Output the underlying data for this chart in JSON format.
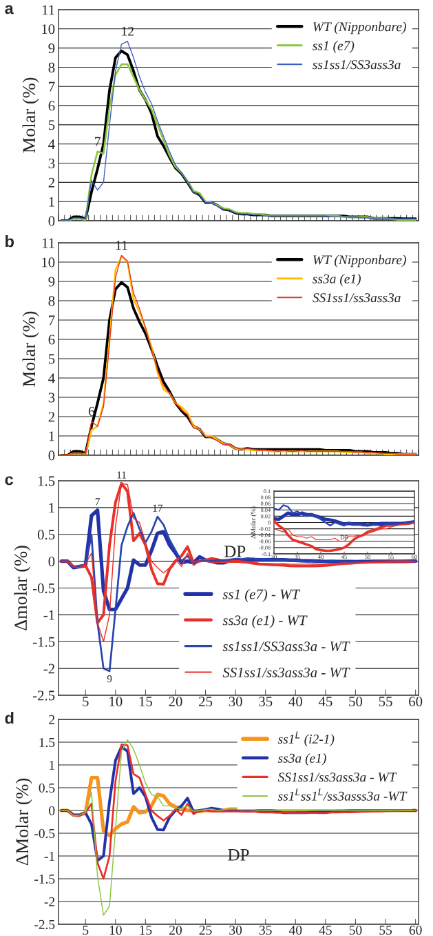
{
  "chart_data": [
    {
      "type": "line",
      "title": "a",
      "ylabel": "Molar (%)",
      "x": [
        1,
        2,
        3,
        4,
        5,
        6,
        7,
        8,
        9,
        10,
        11,
        12,
        13,
        14,
        15,
        16,
        17,
        18,
        19,
        20,
        21,
        22,
        23,
        24,
        25,
        26,
        27,
        28,
        29,
        30,
        31,
        32,
        33,
        34,
        35,
        36,
        37,
        38,
        39,
        40,
        41,
        42,
        43,
        44,
        45,
        46,
        47,
        48,
        49,
        50,
        51,
        52,
        53,
        54,
        55,
        56,
        57,
        58,
        59,
        60
      ],
      "xlim": [
        0.5,
        60.5
      ],
      "xticks": [
        {
          "value": 0.5,
          "label": null
        },
        {
          "value": 1.5,
          "label": null
        },
        {
          "value": 2.5,
          "label": null
        },
        {
          "value": 3.5,
          "label": null
        },
        {
          "value": 4.5,
          "label": null
        },
        {
          "value": 5.5,
          "label": null
        },
        {
          "value": 6.5,
          "label": null
        },
        {
          "value": 7.5,
          "label": null
        },
        {
          "value": 8.5,
          "label": null
        },
        {
          "value": 9.5,
          "label": null
        },
        {
          "value": 10.5,
          "label": null
        },
        {
          "value": 11.5,
          "label": null
        },
        {
          "value": 12.5,
          "label": null
        },
        {
          "value": 13.5,
          "label": null
        },
        {
          "value": 14.5,
          "label": null
        },
        {
          "value": 15.5,
          "label": null
        },
        {
          "value": 16.5,
          "label": null
        },
        {
          "value": 17.5,
          "label": null
        },
        {
          "value": 18.5,
          "label": null
        },
        {
          "value": 19.5,
          "label": null
        },
        {
          "value": 20.5,
          "label": null
        },
        {
          "value": 21.5,
          "label": null
        },
        {
          "value": 22.5,
          "label": null
        },
        {
          "value": 23.5,
          "label": null
        },
        {
          "value": 24.5,
          "label": null
        },
        {
          "value": 25.5,
          "label": null
        },
        {
          "value": 26.5,
          "label": null
        },
        {
          "value": 27.5,
          "label": null
        },
        {
          "value": 28.5,
          "label": null
        },
        {
          "value": 29.5,
          "label": null
        },
        {
          "value": 30.5,
          "label": null
        },
        {
          "value": 31.5,
          "label": null
        },
        {
          "value": 32.5,
          "label": null
        },
        {
          "value": 33.5,
          "label": null
        },
        {
          "value": 34.5,
          "label": null
        },
        {
          "value": 35.5,
          "label": null
        },
        {
          "value": 36.5,
          "label": null
        },
        {
          "value": 37.5,
          "label": null
        },
        {
          "value": 38.5,
          "label": null
        },
        {
          "value": 39.5,
          "label": null
        },
        {
          "value": 40.5,
          "label": null
        },
        {
          "value": 41.5,
          "label": null
        },
        {
          "value": 42.5,
          "label": null
        },
        {
          "value": 43.5,
          "label": null
        },
        {
          "value": 44.5,
          "label": null
        },
        {
          "value": 45.5,
          "label": null
        },
        {
          "value": 46.5,
          "label": null
        },
        {
          "value": 47.5,
          "label": null
        },
        {
          "value": 48.5,
          "label": null
        },
        {
          "value": 49.5,
          "label": null
        },
        {
          "value": 50.5,
          "label": null
        },
        {
          "value": 51.5,
          "label": null
        },
        {
          "value": 52.5,
          "label": null
        },
        {
          "value": 53.5,
          "label": null
        },
        {
          "value": 54.5,
          "label": null
        },
        {
          "value": 55.5,
          "label": null
        },
        {
          "value": 56.5,
          "label": null
        },
        {
          "value": 57.5,
          "label": null
        },
        {
          "value": 58.5,
          "label": null
        },
        {
          "value": 59.5,
          "label": null
        },
        {
          "value": 60.5,
          "label": null
        }
      ],
      "tick_labels": "y",
      "ylim": [
        0,
        11
      ],
      "yticks": [
        0,
        1,
        2,
        3,
        4,
        5,
        6,
        7,
        8,
        9,
        10,
        11
      ],
      "grid": "y",
      "legend": "top right",
      "annotations": [
        {
          "text": "7",
          "x": 7,
          "y": 3.6
        },
        {
          "text": "12",
          "x": 12,
          "y": 9.35
        }
      ],
      "series": [
        {
          "name": "WT (Nipponbare)",
          "color": "#000000",
          "values": [
            0,
            0,
            0.2,
            0.2,
            0.1,
            1.5,
            2.7,
            4.0,
            6.8,
            8.5,
            8.85,
            8.65,
            7.8,
            6.8,
            6.3,
            5.6,
            4.4,
            3.9,
            3.3,
            2.75,
            2.45,
            2.0,
            1.5,
            1.35,
            0.95,
            0.95,
            0.8,
            0.6,
            0.55,
            0.4,
            0.35,
            0.35,
            0.3,
            0.3,
            0.3,
            0.25,
            0.25,
            0.25,
            0.25,
            0.25,
            0.25,
            0.25,
            0.25,
            0.25,
            0.25,
            0.25,
            0.25,
            0.25,
            0.2,
            0.2,
            0.2,
            0.2,
            0.12,
            0.12,
            0.12,
            0.12,
            0.12,
            0.1,
            0.1,
            0.1
          ]
        },
        {
          "name": "ss1 (e7)",
          "color": "#8cc63f",
          "values": [
            0,
            0,
            0.1,
            0.1,
            0.05,
            2.4,
            3.6,
            3.5,
            5.9,
            7.6,
            8.15,
            8.15,
            7.5,
            6.8,
            6.3,
            5.8,
            5.0,
            4.2,
            3.4,
            2.8,
            2.5,
            2.05,
            1.55,
            1.45,
            1.0,
            0.95,
            0.8,
            0.65,
            0.6,
            0.45,
            0.4,
            0.4,
            0.35,
            0.35,
            0.3,
            0.25,
            0.25,
            0.25,
            0.25,
            0.25,
            0.25,
            0.25,
            0.25,
            0.25,
            0.25,
            0.25,
            0.25,
            0.2,
            0.2,
            0.2,
            0.2,
            0.2,
            0.12,
            0.12,
            0.12,
            0.1,
            0.05,
            0.05,
            0.05,
            0.05
          ]
        },
        {
          "name": "ss1ss1/SS3ass3a",
          "color": "#3b5cc4",
          "values": [
            0,
            0,
            0.15,
            0.15,
            0.1,
            2.1,
            1.6,
            2.0,
            5.0,
            7.8,
            9.2,
            9.35,
            8.5,
            7.5,
            6.7,
            6.1,
            5.2,
            4.4,
            3.6,
            2.9,
            2.5,
            2.05,
            1.45,
            1.35,
            0.95,
            0.95,
            0.75,
            0.6,
            0.55,
            0.4,
            0.35,
            0.35,
            0.3,
            0.3,
            0.25,
            0.25,
            0.25,
            0.25,
            0.25,
            0.25,
            0.25,
            0.25,
            0.25,
            0.25,
            0.25,
            0.2,
            0.2,
            0.2,
            0.2,
            0.2,
            0.15,
            0.15,
            0.1,
            0.1,
            0.1,
            0.1,
            0.1,
            0.1,
            0.1,
            0.1
          ]
        }
      ]
    },
    {
      "type": "line",
      "title": "b",
      "ylabel": "Molar (%)",
      "x": [
        1,
        2,
        3,
        4,
        5,
        6,
        7,
        8,
        9,
        10,
        11,
        12,
        13,
        14,
        15,
        16,
        17,
        18,
        19,
        20,
        21,
        22,
        23,
        24,
        25,
        26,
        27,
        28,
        29,
        30,
        31,
        32,
        33,
        34,
        35,
        36,
        37,
        38,
        39,
        40,
        41,
        42,
        43,
        44,
        45,
        46,
        47,
        48,
        49,
        50,
        51,
        52,
        53,
        54,
        55,
        56,
        57,
        58,
        59,
        60
      ],
      "xlim": [
        0.5,
        60.5
      ],
      "xticks": [
        {
          "value": 0.5,
          "label": null
        },
        {
          "value": 1.5,
          "label": null
        },
        {
          "value": 2.5,
          "label": null
        },
        {
          "value": 3.5,
          "label": null
        },
        {
          "value": 4.5,
          "label": null
        },
        {
          "value": 5.5,
          "label": null
        },
        {
          "value": 6.5,
          "label": null
        },
        {
          "value": 7.5,
          "label": null
        },
        {
          "value": 8.5,
          "label": null
        },
        {
          "value": 9.5,
          "label": null
        },
        {
          "value": 10.5,
          "label": null
        },
        {
          "value": 11.5,
          "label": null
        },
        {
          "value": 12.5,
          "label": null
        },
        {
          "value": 13.5,
          "label": null
        },
        {
          "value": 14.5,
          "label": null
        },
        {
          "value": 15.5,
          "label": null
        },
        {
          "value": 16.5,
          "label": null
        },
        {
          "value": 17.5,
          "label": null
        },
        {
          "value": 18.5,
          "label": null
        },
        {
          "value": 19.5,
          "label": null
        },
        {
          "value": 20.5,
          "label": null
        },
        {
          "value": 21.5,
          "label": null
        },
        {
          "value": 22.5,
          "label": null
        },
        {
          "value": 23.5,
          "label": null
        },
        {
          "value": 24.5,
          "label": null
        },
        {
          "value": 25.5,
          "label": null
        },
        {
          "value": 26.5,
          "label": null
        },
        {
          "value": 27.5,
          "label": null
        },
        {
          "value": 28.5,
          "label": null
        },
        {
          "value": 29.5,
          "label": null
        },
        {
          "value": 30.5,
          "label": null
        },
        {
          "value": 31.5,
          "label": null
        },
        {
          "value": 32.5,
          "label": null
        },
        {
          "value": 33.5,
          "label": null
        },
        {
          "value": 34.5,
          "label": null
        },
        {
          "value": 35.5,
          "label": null
        },
        {
          "value": 36.5,
          "label": null
        },
        {
          "value": 37.5,
          "label": null
        },
        {
          "value": 38.5,
          "label": null
        },
        {
          "value": 39.5,
          "label": null
        },
        {
          "value": 40.5,
          "label": null
        },
        {
          "value": 41.5,
          "label": null
        },
        {
          "value": 42.5,
          "label": null
        },
        {
          "value": 43.5,
          "label": null
        },
        {
          "value": 44.5,
          "label": null
        },
        {
          "value": 45.5,
          "label": null
        },
        {
          "value": 46.5,
          "label": null
        },
        {
          "value": 47.5,
          "label": null
        },
        {
          "value": 48.5,
          "label": null
        },
        {
          "value": 49.5,
          "label": null
        },
        {
          "value": 50.5,
          "label": null
        },
        {
          "value": 51.5,
          "label": null
        },
        {
          "value": 52.5,
          "label": null
        },
        {
          "value": 53.5,
          "label": null
        },
        {
          "value": 54.5,
          "label": null
        },
        {
          "value": 55.5,
          "label": null
        },
        {
          "value": 56.5,
          "label": null
        },
        {
          "value": 57.5,
          "label": null
        },
        {
          "value": 58.5,
          "label": null
        },
        {
          "value": 59.5,
          "label": null
        },
        {
          "value": 60.5,
          "label": null
        }
      ],
      "tick_labels": "y",
      "ylim": [
        0,
        11
      ],
      "yticks": [
        0,
        1,
        2,
        3,
        4,
        5,
        6,
        7,
        8,
        9,
        10,
        11
      ],
      "grid": "y",
      "legend": "top right",
      "annotations": [
        {
          "text": "6",
          "x": 6,
          "y": 1.75
        },
        {
          "text": "11",
          "x": 11,
          "y": 10.35
        }
      ],
      "series": [
        {
          "name": "WT (Nipponbare)",
          "color": "#000000",
          "values": [
            0,
            0,
            0.2,
            0.2,
            0.1,
            1.5,
            2.7,
            4.0,
            7.0,
            8.6,
            8.95,
            8.7,
            7.6,
            6.9,
            6.3,
            5.5,
            4.6,
            3.8,
            3.3,
            2.7,
            2.3,
            2.0,
            1.5,
            1.35,
            0.95,
            0.95,
            0.8,
            0.6,
            0.55,
            0.35,
            0.3,
            0.35,
            0.3,
            0.3,
            0.3,
            0.3,
            0.3,
            0.3,
            0.3,
            0.3,
            0.3,
            0.3,
            0.3,
            0.3,
            0.25,
            0.25,
            0.25,
            0.25,
            0.25,
            0.2,
            0.2,
            0.2,
            0.15,
            0.15,
            0.15,
            0.1,
            0.1,
            0.05,
            0.05,
            0.05
          ]
        },
        {
          "name": "ss3a (e1)",
          "color": "#ffc000",
          "values": [
            0,
            0,
            0.1,
            0.1,
            0.05,
            1.3,
            1.5,
            2.7,
            6.0,
            9.6,
            10.3,
            10.0,
            8.1,
            7.4,
            6.6,
            5.6,
            4.3,
            3.4,
            3.2,
            2.7,
            2.5,
            2.2,
            1.5,
            1.35,
            1.0,
            1.0,
            0.8,
            0.6,
            0.55,
            0.35,
            0.3,
            0.3,
            0.25,
            0.25,
            0.25,
            0.2,
            0.2,
            0.2,
            0.2,
            0.2,
            0.2,
            0.2,
            0.2,
            0.2,
            0.2,
            0.2,
            0.2,
            0.15,
            0.15,
            0.15,
            0.15,
            0.1,
            0.1,
            0.1,
            0.05,
            0.05,
            0.05,
            0.05,
            0.05,
            0.05
          ]
        },
        {
          "name": "SS1ss1/ss3ass3a",
          "color": "#e8312a",
          "values": [
            0,
            0,
            0.1,
            0.1,
            0.05,
            1.75,
            1.5,
            2.5,
            5.8,
            9.2,
            10.35,
            10.05,
            8.4,
            7.6,
            6.6,
            5.5,
            4.4,
            3.6,
            3.2,
            2.7,
            2.35,
            2.1,
            1.4,
            1.4,
            0.95,
            0.9,
            0.75,
            0.55,
            0.55,
            0.4,
            0.3,
            0.35,
            0.3,
            0.25,
            0.25,
            0.25,
            0.2,
            0.25,
            0.2,
            0.2,
            0.25,
            0.2,
            0.2,
            0.2,
            0.2,
            0.2,
            0.2,
            0.2,
            0.2,
            0.15,
            0.15,
            0.15,
            0.15,
            0.1,
            0.1,
            0.1,
            0.05,
            0.05,
            0.05,
            0.05
          ]
        }
      ]
    },
    {
      "type": "line",
      "title": "c",
      "ylabel": "Δmolar (%)",
      "xlabel": "DP",
      "x": [
        1,
        2,
        3,
        4,
        5,
        6,
        7,
        8,
        9,
        10,
        11,
        12,
        13,
        14,
        15,
        16,
        17,
        18,
        19,
        20,
        21,
        22,
        23,
        24,
        25,
        26,
        27,
        28,
        29,
        30,
        31,
        32,
        33,
        34,
        35,
        36,
        37,
        38,
        39,
        40,
        41,
        42,
        43,
        44,
        45,
        46,
        47,
        48,
        49,
        50,
        51,
        52,
        53,
        54,
        55,
        56,
        57,
        58,
        59,
        60
      ],
      "xlim": [
        0.5,
        60.5
      ],
      "xticks": [
        5,
        10,
        15,
        20,
        25,
        30,
        35,
        40,
        45,
        50,
        55,
        60
      ],
      "ylim": [
        -2.5,
        1.5
      ],
      "yticks": [
        -2.5,
        -2,
        -1.5,
        -1,
        -0.5,
        0,
        0.5,
        1,
        1.5
      ],
      "grid": "y",
      "legend": "bottom",
      "annotations": [
        {
          "text": "7",
          "x": 7,
          "y": 0.95
        },
        {
          "text": "11",
          "x": 11,
          "y": 1.45
        },
        {
          "text": "17",
          "x": 17,
          "y": 0.83
        },
        {
          "text": "9",
          "x": 9,
          "y": -2.05
        }
      ],
      "series": [
        {
          "name": "ss1 (e7) - WT",
          "color": "#2233aa",
          "values": [
            0,
            0,
            -0.12,
            -0.1,
            -0.08,
            0.85,
            0.95,
            -0.55,
            -0.9,
            -0.9,
            -0.7,
            -0.5,
            0.02,
            -0.07,
            -0.07,
            0.2,
            0.52,
            0.55,
            0.3,
            0.15,
            -0.03,
            0.0,
            -0.03,
            0.08,
            0.02,
            0.0,
            -0.03,
            -0.03,
            0.01,
            0.012,
            0.01,
            0.02,
            0.03,
            0.025,
            0.025,
            0.03,
            0.025,
            0.025,
            0.02,
            0.015,
            0.01,
            0.008,
            0.005,
            0.0,
            -0.005,
            -0.003,
            -0.005,
            -0.005,
            -0.005,
            -0.008,
            -0.005,
            -0.005,
            -0.003,
            -0.003,
            -0.003,
            -0.003,
            -0.003,
            -0.002,
            0.0,
            0.002
          ]
        },
        {
          "name": "ss3a (e1) - WT",
          "color": "#e8312a",
          "values": [
            0,
            0,
            -0.1,
            -0.1,
            -0.08,
            -0.3,
            -1.15,
            -1.0,
            0.3,
            1.1,
            1.45,
            1.3,
            0.38,
            0.52,
            0.3,
            -0.15,
            -0.42,
            -0.43,
            -0.15,
            0.0,
            0.1,
            0.27,
            -0.03,
            0.0,
            0.02,
            0.05,
            0.03,
            0.0,
            0.0,
            0.005,
            -0.01,
            -0.02,
            -0.04,
            -0.055,
            -0.06,
            -0.065,
            -0.07,
            -0.075,
            -0.085,
            -0.088,
            -0.09,
            -0.09,
            -0.088,
            -0.085,
            -0.08,
            -0.07,
            -0.055,
            -0.045,
            -0.04,
            -0.03,
            -0.025,
            -0.02,
            -0.015,
            -0.01,
            -0.01,
            -0.008,
            -0.005,
            -0.005,
            -0.003,
            0.0
          ]
        },
        {
          "name": "ss1ss1/SS3ass3a - WT",
          "color": "#2a44b0",
          "values": [
            0,
            0,
            -0.1,
            -0.1,
            -0.05,
            0.48,
            -1.15,
            -2.0,
            -2.05,
            -0.9,
            0.3,
            0.65,
            0.9,
            0.6,
            0.35,
            0.55,
            0.83,
            0.68,
            0.4,
            0.2,
            0.0,
            0.1,
            -0.05,
            0.0,
            0.0,
            0.0,
            0.02,
            0.02,
            0.03,
            0.045,
            0.04,
            0.055,
            0.05,
            0.03,
            0.035,
            0.025,
            0.02,
            0.027,
            0.02,
            0.01,
            0.0,
            -0.01,
            0.0,
            -0.005,
            -0.01,
            0.0,
            -0.005,
            -0.005,
            -0.01,
            -0.01,
            -0.008,
            -0.008,
            -0.01,
            -0.005,
            -0.005,
            -0.005,
            -0.003,
            -0.002,
            0.0,
            0.005
          ]
        },
        {
          "name": "SS1ss1/ss3ass3a - WT",
          "color": "#e8312a",
          "values": [
            0,
            0,
            -0.1,
            -0.12,
            -0.05,
            0.15,
            -1.15,
            -1.5,
            -1.0,
            0.65,
            1.45,
            1.43,
            0.8,
            0.72,
            0.35,
            0.0,
            -0.12,
            -0.22,
            -0.12,
            0.03,
            -0.1,
            0.15,
            -0.08,
            0.0,
            0.0,
            -0.02,
            -0.02,
            -0.02,
            -0.02,
            -0.02,
            -0.025,
            -0.03,
            -0.02,
            -0.04,
            -0.045,
            -0.045,
            -0.05,
            -0.045,
            -0.055,
            -0.055,
            -0.055,
            -0.055,
            -0.05,
            -0.06,
            -0.06,
            -0.045,
            -0.045,
            -0.04,
            -0.04,
            -0.035,
            -0.03,
            -0.025,
            -0.02,
            -0.02,
            -0.015,
            -0.01,
            -0.008,
            -0.005,
            -0.005,
            0.0
          ]
        }
      ]
    },
    {
      "type": "line",
      "ylabel": "ΔMolar (%)",
      "xlabel": "DP",
      "x": [
        30,
        31,
        32,
        33,
        34,
        35,
        36,
        37,
        38,
        39,
        40,
        41,
        42,
        43,
        44,
        45,
        46,
        47,
        48,
        49,
        50,
        51,
        52,
        53,
        54,
        55,
        56,
        57,
        58,
        59,
        60
      ],
      "xlim": [
        30,
        60
      ],
      "xticks": [
        30,
        35,
        40,
        45,
        50,
        55,
        60
      ],
      "ylim": [
        -0.1,
        0.1
      ],
      "yticks": [
        -0.1,
        -0.08,
        -0.06,
        -0.04,
        -0.02,
        0,
        0.02,
        0.04,
        0.06,
        0.08,
        0.1
      ],
      "grid": "y",
      "series": [
        {
          "color": "#2233aa",
          "values": [
            0.012,
            0.01,
            0.02,
            0.03,
            0.025,
            0.025,
            0.03,
            0.025,
            0.025,
            0.02,
            0.015,
            0.01,
            0.008,
            0.005,
            0.0,
            -0.005,
            -0.003,
            -0.005,
            -0.005,
            -0.005,
            -0.008,
            -0.005,
            -0.005,
            -0.003,
            -0.003,
            -0.003,
            -0.003,
            -0.003,
            -0.002,
            0.0,
            0.002
          ]
        },
        {
          "color": "#e8312a",
          "values": [
            0.005,
            -0.01,
            -0.02,
            -0.04,
            -0.055,
            -0.06,
            -0.065,
            -0.07,
            -0.075,
            -0.085,
            -0.088,
            -0.09,
            -0.09,
            -0.088,
            -0.085,
            -0.08,
            -0.07,
            -0.055,
            -0.045,
            -0.04,
            -0.03,
            -0.025,
            -0.02,
            -0.015,
            -0.01,
            -0.01,
            -0.008,
            -0.005,
            -0.005,
            -0.003,
            0.0
          ]
        },
        {
          "color": "#2a44b0",
          "values": [
            0.045,
            0.04,
            0.055,
            0.05,
            0.03,
            0.035,
            0.025,
            0.02,
            0.027,
            0.02,
            0.01,
            0.0,
            -0.01,
            0.0,
            -0.005,
            -0.01,
            0.0,
            -0.005,
            -0.005,
            -0.01,
            -0.01,
            -0.008,
            -0.008,
            -0.01,
            -0.005,
            -0.005,
            -0.005,
            -0.003,
            -0.002,
            0.0,
            0.005
          ]
        },
        {
          "color": "#e8312a",
          "values": [
            -0.02,
            -0.025,
            -0.03,
            -0.02,
            -0.04,
            -0.045,
            -0.045,
            -0.05,
            -0.045,
            -0.055,
            -0.055,
            -0.055,
            -0.055,
            -0.05,
            -0.06,
            -0.06,
            -0.045,
            -0.045,
            -0.04,
            -0.04,
            -0.035,
            -0.03,
            -0.025,
            -0.02,
            -0.02,
            -0.015,
            -0.01,
            -0.008,
            -0.005,
            -0.005,
            0.0
          ]
        }
      ]
    },
    {
      "type": "line",
      "title": "d",
      "ylabel": "ΔMolar (%)",
      "xlabel": "DP",
      "x": [
        1,
        2,
        3,
        4,
        5,
        6,
        7,
        8,
        9,
        10,
        11,
        12,
        13,
        14,
        15,
        16,
        17,
        18,
        19,
        20,
        21,
        22,
        23,
        24,
        25,
        26,
        27,
        28,
        29,
        30,
        31,
        32,
        33,
        34,
        35,
        36,
        37,
        38,
        39,
        40,
        41,
        42,
        43,
        44,
        45,
        46,
        47,
        48,
        49,
        50,
        51,
        52,
        53,
        54,
        55,
        56,
        57,
        58,
        59,
        60
      ],
      "xlim": [
        0.5,
        60.5
      ],
      "xticks": [
        5,
        10,
        15,
        20,
        25,
        30,
        35,
        40,
        45,
        50,
        55,
        60
      ],
      "ylim": [
        -2.5,
        2
      ],
      "yticks": [
        -2.5,
        -2,
        -1.5,
        -1,
        -0.5,
        0,
        0.5,
        1,
        1.5,
        2
      ],
      "grid": "y",
      "legend": "top right",
      "series": [
        {
          "name": "ss1$^{L}$ (i2-1)",
          "color": "#f7941d",
          "values": [
            0,
            0,
            -0.1,
            -0.1,
            -0.05,
            0.72,
            0.72,
            -0.45,
            -0.55,
            -0.4,
            -0.3,
            -0.25,
            0.08,
            -0.05,
            -0.03,
            0.1,
            0.35,
            0.32,
            0.15,
            0.08,
            0.05,
            0.0,
            0.0,
            -0.02,
            0.0,
            0.0,
            0.0,
            0.0,
            0.03,
            0.03,
            0.03,
            0.03,
            0.03,
            0.03,
            0.03,
            0.03,
            0.02,
            0.02,
            0.02,
            0.02,
            0,
            0,
            0,
            0,
            0,
            0,
            0,
            0,
            0,
            0,
            0,
            0,
            0,
            0,
            0,
            0,
            0,
            0,
            0,
            0
          ]
        },
        {
          "name": "ss3a (e1)",
          "color": "#2233aa",
          "values": [
            0,
            0,
            -0.1,
            -0.1,
            -0.05,
            -0.3,
            -1.1,
            -1.0,
            0.2,
            1.1,
            1.4,
            1.3,
            0.37,
            0.5,
            0.3,
            -0.15,
            -0.42,
            -0.43,
            -0.15,
            0.0,
            0.1,
            0.27,
            -0.03,
            0.0,
            0.02,
            0.05,
            0.03,
            0.0,
            0.0,
            0.0,
            0,
            0,
            0,
            0,
            0,
            0,
            -0.02,
            -0.05,
            -0.05,
            -0.05,
            -0.05,
            -0.05,
            -0.03,
            -0.02,
            -0.02,
            -0.02,
            -0.01,
            -0.01,
            0,
            0,
            0,
            0,
            0,
            0,
            0,
            0,
            0,
            0,
            0,
            0
          ]
        },
        {
          "name": "SS1ss1/ss3ass3a - WT",
          "color": "#e8312a",
          "values": [
            0,
            0,
            -0.1,
            -0.12,
            -0.05,
            0.15,
            -1.15,
            -1.5,
            -1.0,
            0.65,
            1.45,
            1.43,
            0.8,
            0.72,
            0.35,
            0.0,
            -0.12,
            -0.22,
            -0.12,
            0.03,
            -0.1,
            0.15,
            -0.08,
            0.0,
            0.0,
            -0.02,
            -0.02,
            -0.02,
            -0.02,
            -0.02,
            -0.025,
            -0.03,
            -0.02,
            -0.04,
            -0.045,
            -0.045,
            -0.05,
            -0.045,
            -0.055,
            -0.055,
            -0.055,
            -0.055,
            -0.05,
            -0.06,
            -0.06,
            -0.045,
            -0.045,
            -0.04,
            -0.04,
            -0.035,
            -0.03,
            -0.025,
            -0.02,
            -0.02,
            -0.015,
            -0.01,
            -0.008,
            -0.005,
            -0.005,
            0.0
          ]
        },
        {
          "name": "ss1$^{L}$ss1$^{L}$/ss3asss3a -WT",
          "color": "#8cc63f",
          "values": [
            0,
            0,
            -0.12,
            -0.1,
            -0.05,
            0.4,
            -1.45,
            -2.3,
            -2.1,
            -0.4,
            1.3,
            1.55,
            1.35,
            1.0,
            0.6,
            0.35,
            0.3,
            0.1,
            0.1,
            0.05,
            0.05,
            0.1,
            -0.02,
            0.0,
            0.02,
            0.03,
            0.0,
            0.02,
            0.03,
            0.03,
            0.02,
            0.02,
            0.02,
            0,
            0,
            0,
            0,
            0,
            0,
            0,
            0,
            0,
            0,
            0,
            0,
            0,
            0,
            0,
            0,
            0,
            0,
            0,
            0,
            0,
            0,
            0,
            0,
            0,
            0,
            0
          ]
        }
      ]
    }
  ]
}
